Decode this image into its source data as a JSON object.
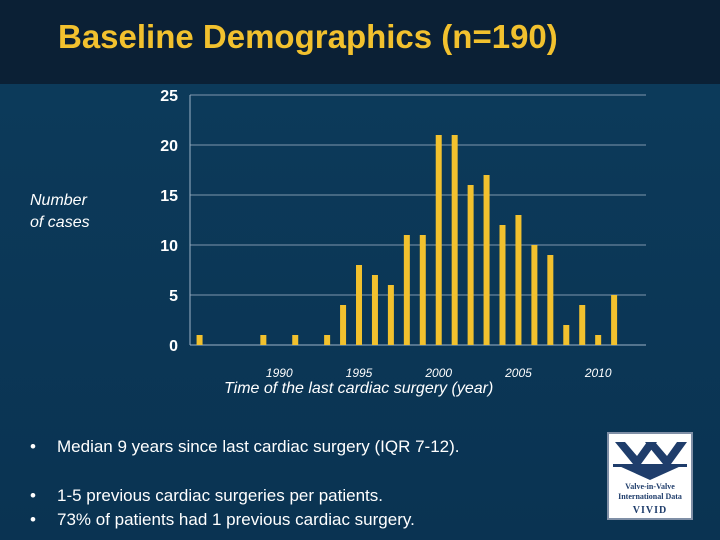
{
  "header": {
    "title": "Baseline Demographics (n=190)"
  },
  "chart_data": {
    "type": "bar",
    "title": "",
    "xlabel": "Time of the last cardiac surgery (year)",
    "ylabel": "Number of cases",
    "ylabel_lines": [
      "Number",
      "of cases"
    ],
    "ylim": [
      0,
      25
    ],
    "yticks": [
      0,
      5,
      10,
      15,
      20,
      25
    ],
    "xticks": [
      1990,
      1995,
      2000,
      2005,
      2010
    ],
    "x": [
      1985,
      1989,
      1991,
      1993,
      1994,
      1995,
      1996,
      1997,
      1998,
      1999,
      2000,
      2001,
      2002,
      2003,
      2004,
      2005,
      2006,
      2007,
      2008,
      2009,
      2010,
      2011
    ],
    "values": [
      1,
      1,
      1,
      1,
      4,
      8,
      7,
      6,
      11,
      11,
      21,
      21,
      16,
      17,
      12,
      13,
      10,
      9,
      2,
      4,
      1,
      5
    ],
    "bar_color": "#f2c12e",
    "grid": true
  },
  "bullets": [
    "Median 9 years since last cardiac surgery (IQR  7-12).",
    "1-5 previous cardiac surgeries per patients.",
    "73% of patients had 1 previous cardiac surgery."
  ],
  "bullet_symbol": "•",
  "logo": {
    "name": "vivid-logo-icon",
    "line1": "Valve-in-Valve",
    "line2": "International Data",
    "abbr": "VIVID"
  }
}
